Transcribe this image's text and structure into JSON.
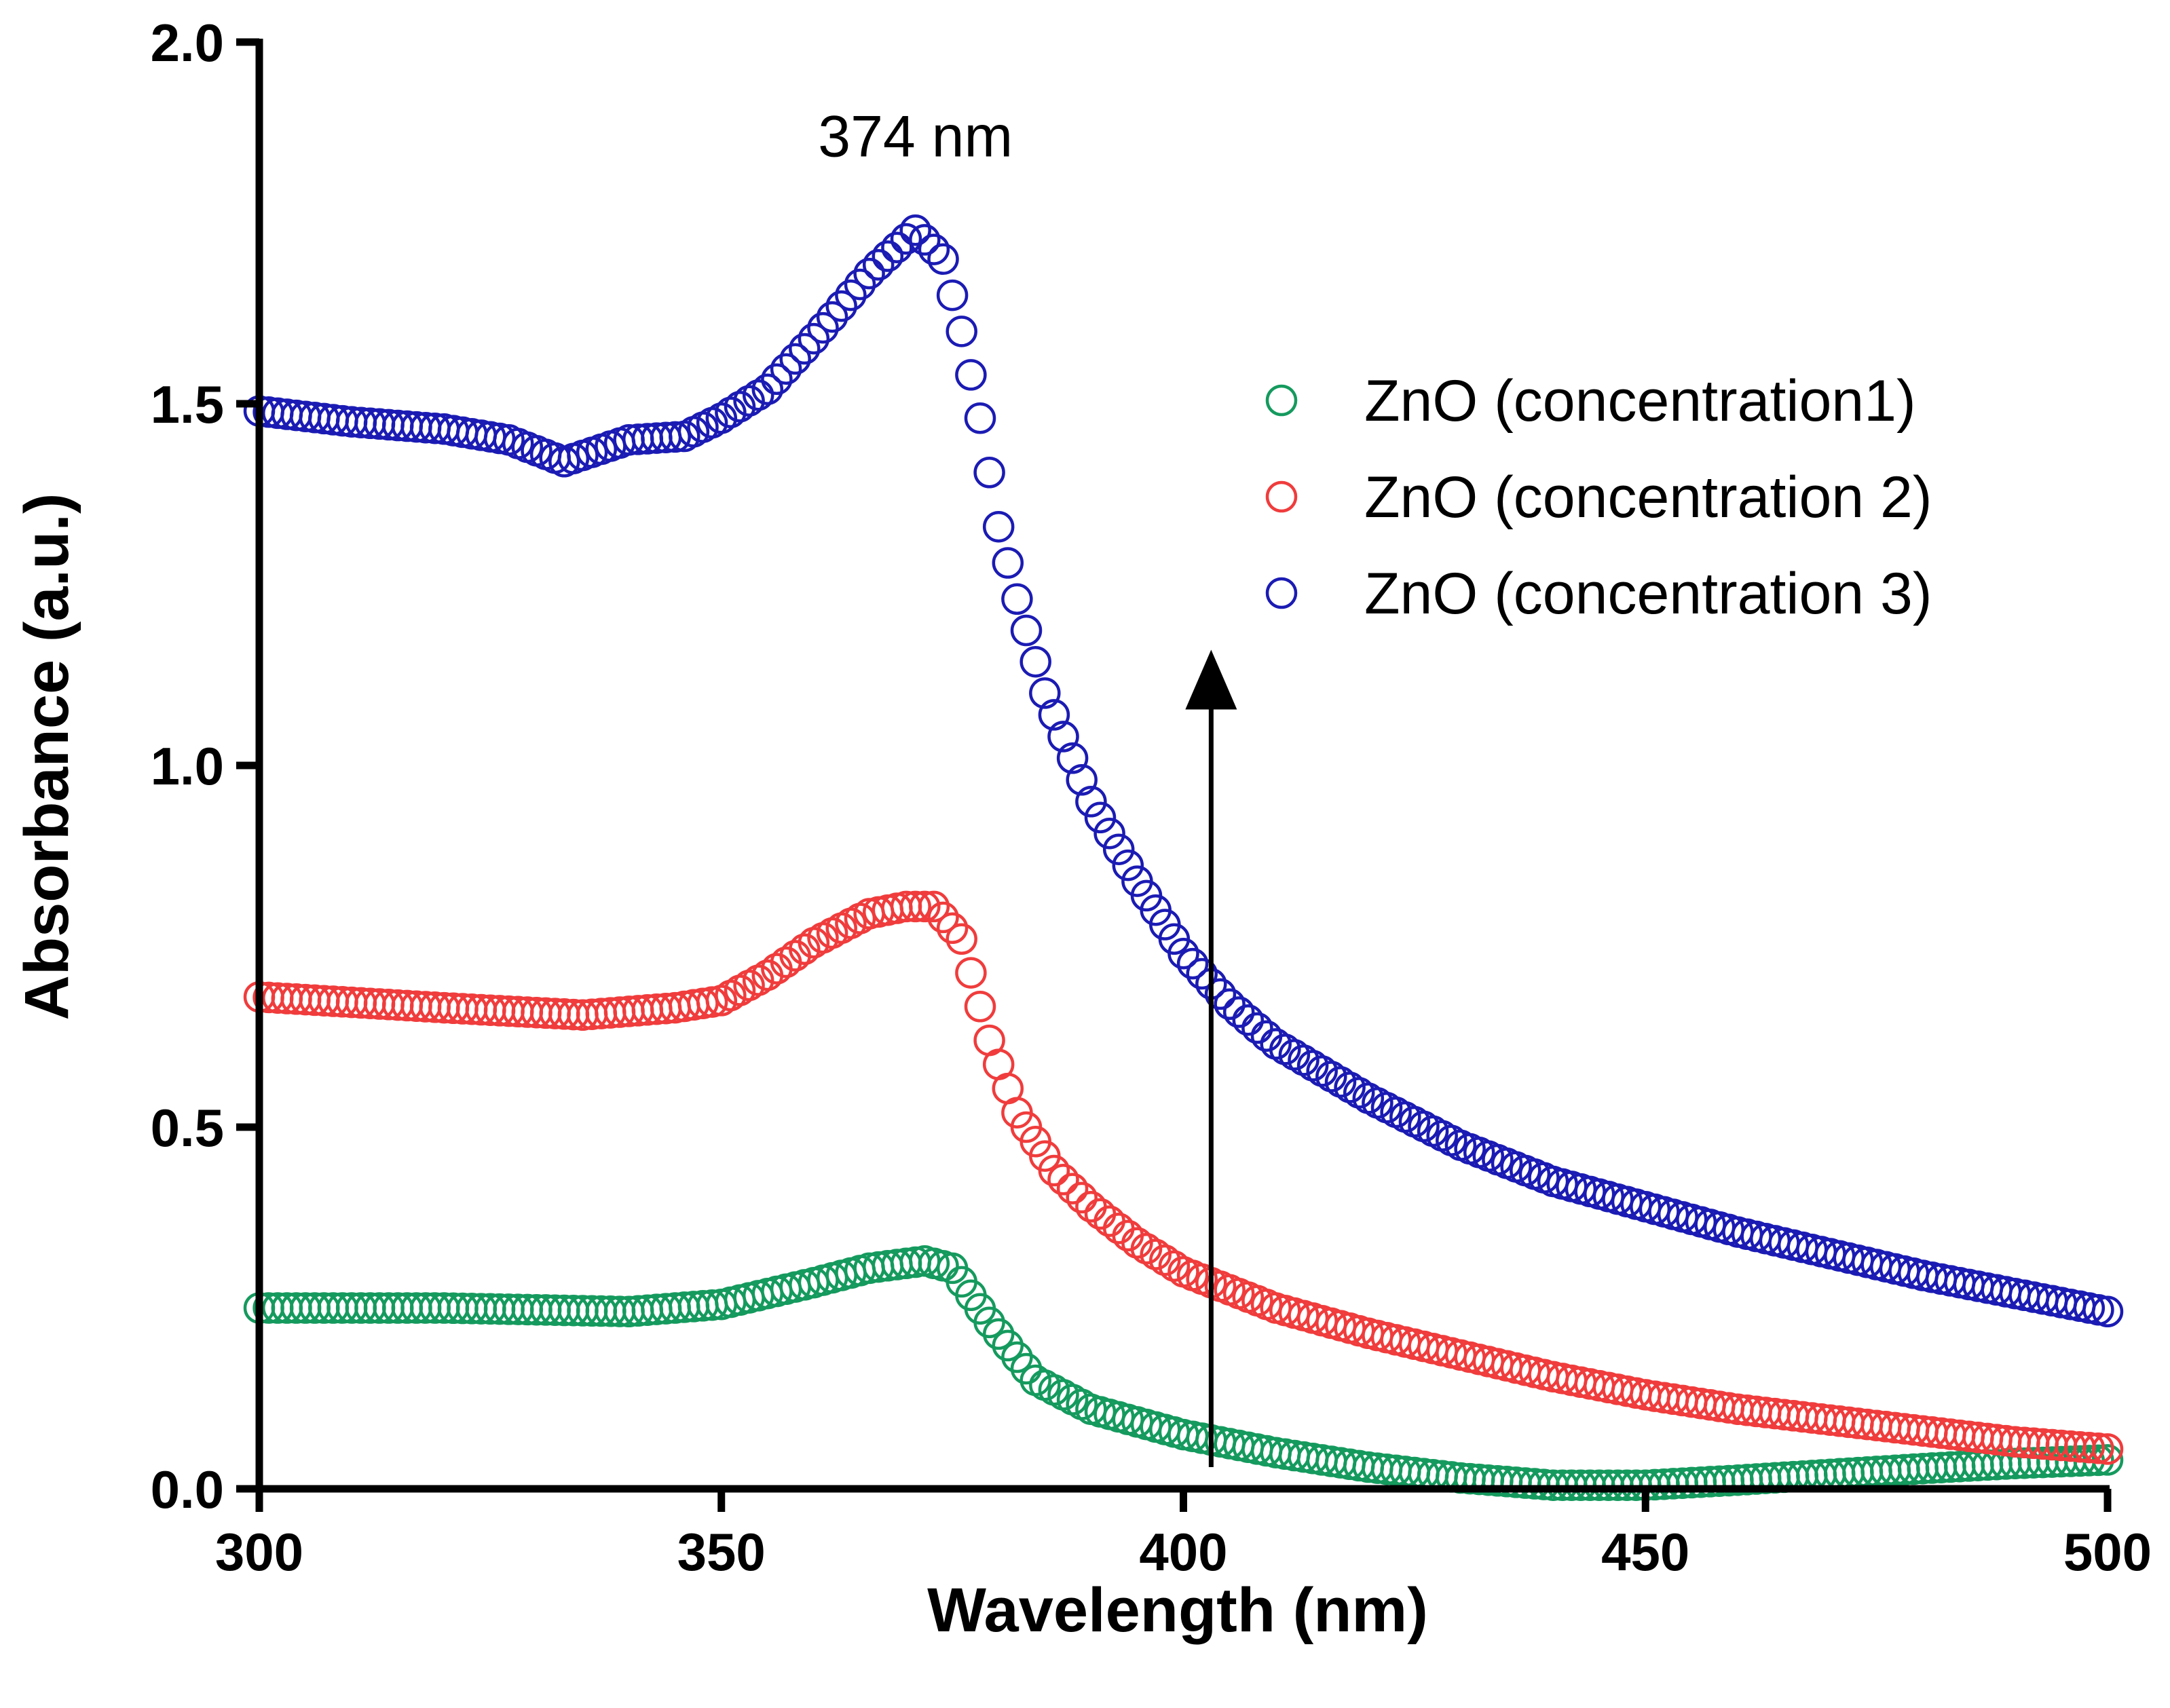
{
  "chart_data": {
    "type": "scatter",
    "title": "",
    "xlabel": "Wavelength (nm)",
    "ylabel": "Absorbance (a.u.)",
    "xlim": [
      300,
      500
    ],
    "ylim": [
      0,
      2.0
    ],
    "xticks": [
      300,
      350,
      400,
      450,
      500
    ],
    "yticks": [
      0.0,
      0.5,
      1.0,
      1.5,
      2.0
    ],
    "xtick_labels": [
      "300",
      "350",
      "400",
      "450",
      "500"
    ],
    "ytick_labels": [
      "0.0",
      "0.5",
      "1.0",
      "1.5",
      "2.0"
    ],
    "grid": false,
    "legend_position": "top-right",
    "marker": "open-circle",
    "x_step": 1,
    "series": [
      {
        "name": "ZnO (concentration1)",
        "color": "#159a5e",
        "anchors": [
          [
            300,
            0.25
          ],
          [
            320,
            0.25
          ],
          [
            340,
            0.245
          ],
          [
            350,
            0.255
          ],
          [
            360,
            0.285
          ],
          [
            366,
            0.305
          ],
          [
            372,
            0.315
          ],
          [
            375,
            0.305
          ],
          [
            379,
            0.23
          ],
          [
            384,
            0.15
          ],
          [
            390,
            0.11
          ],
          [
            400,
            0.075
          ],
          [
            410,
            0.05
          ],
          [
            420,
            0.03
          ],
          [
            430,
            0.015
          ],
          [
            440,
            0.005
          ],
          [
            450,
            0.005
          ],
          [
            460,
            0.012
          ],
          [
            470,
            0.02
          ],
          [
            480,
            0.028
          ],
          [
            490,
            0.035
          ],
          [
            500,
            0.04
          ]
        ]
      },
      {
        "name": "ZnO (concentration 2)",
        "color": "#f03c3c",
        "anchors": [
          [
            300,
            0.68
          ],
          [
            320,
            0.665
          ],
          [
            335,
            0.655
          ],
          [
            345,
            0.665
          ],
          [
            350,
            0.675
          ],
          [
            355,
            0.71
          ],
          [
            360,
            0.755
          ],
          [
            366,
            0.795
          ],
          [
            370,
            0.805
          ],
          [
            373,
            0.805
          ],
          [
            376,
            0.76
          ],
          [
            379,
            0.62
          ],
          [
            382,
            0.52
          ],
          [
            386,
            0.44
          ],
          [
            390,
            0.39
          ],
          [
            395,
            0.34
          ],
          [
            400,
            0.3
          ],
          [
            410,
            0.25
          ],
          [
            420,
            0.215
          ],
          [
            430,
            0.185
          ],
          [
            440,
            0.155
          ],
          [
            450,
            0.13
          ],
          [
            460,
            0.11
          ],
          [
            470,
            0.095
          ],
          [
            480,
            0.08
          ],
          [
            490,
            0.065
          ],
          [
            500,
            0.055
          ]
        ]
      },
      {
        "name": "ZnO (concentration 3)",
        "color": "#1b1bb4",
        "anchors": [
          [
            300,
            1.49
          ],
          [
            310,
            1.475
          ],
          [
            320,
            1.465
          ],
          [
            327,
            1.45
          ],
          [
            333,
            1.42
          ],
          [
            340,
            1.45
          ],
          [
            346,
            1.455
          ],
          [
            350,
            1.48
          ],
          [
            355,
            1.52
          ],
          [
            360,
            1.59
          ],
          [
            366,
            1.68
          ],
          [
            371,
            1.74
          ],
          [
            374,
            1.7
          ],
          [
            376,
            1.6
          ],
          [
            378,
            1.48
          ],
          [
            380,
            1.33
          ],
          [
            382,
            1.23
          ],
          [
            385,
            1.1
          ],
          [
            390,
            0.95
          ],
          [
            395,
            0.84
          ],
          [
            400,
            0.74
          ],
          [
            405,
            0.67
          ],
          [
            410,
            0.615
          ],
          [
            420,
            0.54
          ],
          [
            430,
            0.475
          ],
          [
            440,
            0.425
          ],
          [
            450,
            0.39
          ],
          [
            460,
            0.355
          ],
          [
            470,
            0.325
          ],
          [
            480,
            0.295
          ],
          [
            490,
            0.27
          ],
          [
            500,
            0.245
          ]
        ]
      }
    ],
    "annotations": [
      {
        "text": "374 nm",
        "x": 371,
        "y": 1.87
      }
    ],
    "arrow": {
      "x": 403,
      "y_from": 0.03,
      "y_to": 1.16
    }
  }
}
